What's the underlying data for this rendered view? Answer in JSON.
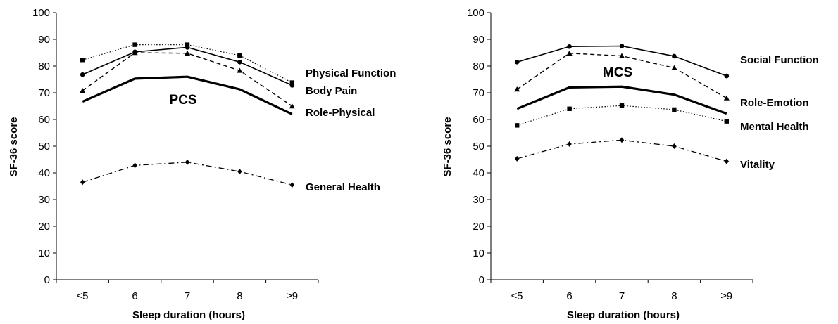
{
  "chart_data": [
    {
      "type": "line",
      "title": "PCS",
      "xlabel": "Sleep duration (hours)",
      "ylabel": "SF-36 score",
      "categories": [
        "≤5",
        "6",
        "7",
        "8",
        "≥9"
      ],
      "ylim": [
        0,
        100
      ],
      "yticks": [
        0,
        10,
        20,
        30,
        40,
        50,
        60,
        70,
        80,
        90,
        100
      ],
      "grid": false,
      "series": [
        {
          "name": "Physical Function",
          "values": [
            82.3,
            88.0,
            88.0,
            84.0,
            73.8
          ],
          "style": "dotted",
          "marker": "square"
        },
        {
          "name": "Body Pain",
          "values": [
            76.8,
            85.3,
            87.0,
            81.5,
            72.8
          ],
          "style": "solid",
          "marker": "circle"
        },
        {
          "name": "Role-Physical",
          "values": [
            70.8,
            85.0,
            84.8,
            78.3,
            65.0
          ],
          "style": "dashed",
          "marker": "triangle"
        },
        {
          "name": "",
          "values": [
            66.7,
            75.3,
            76.0,
            71.3,
            62.0
          ],
          "style": "bold",
          "marker": "none"
        },
        {
          "name": "General Health",
          "values": [
            36.5,
            42.8,
            44.0,
            40.5,
            35.5
          ],
          "style": "dashdot",
          "marker": "diamond"
        }
      ]
    },
    {
      "type": "line",
      "title": "MCS",
      "xlabel": "Sleep duration (hours)",
      "ylabel": "SF-36 score",
      "categories": [
        "≤5",
        "6",
        "7",
        "8",
        "≥9"
      ],
      "ylim": [
        0,
        100
      ],
      "yticks": [
        0,
        10,
        20,
        30,
        40,
        50,
        60,
        70,
        80,
        90,
        100
      ],
      "grid": false,
      "series": [
        {
          "name": "Social Function",
          "values": [
            81.5,
            87.3,
            87.5,
            83.7,
            76.3
          ],
          "style": "solid",
          "marker": "circle"
        },
        {
          "name": "Role-Emotion",
          "values": [
            71.3,
            84.8,
            83.8,
            79.3,
            68.0
          ],
          "style": "dashed",
          "marker": "triangle"
        },
        {
          "name": "",
          "values": [
            64.0,
            72.0,
            72.3,
            69.3,
            62.2
          ],
          "style": "bold",
          "marker": "none"
        },
        {
          "name": "Mental Health",
          "values": [
            57.8,
            64.0,
            65.2,
            63.7,
            59.3
          ],
          "style": "dotted",
          "marker": "square"
        },
        {
          "name": "Vitality",
          "values": [
            45.3,
            50.8,
            52.3,
            50.0,
            44.3
          ],
          "style": "dashdot",
          "marker": "diamond"
        }
      ]
    }
  ]
}
